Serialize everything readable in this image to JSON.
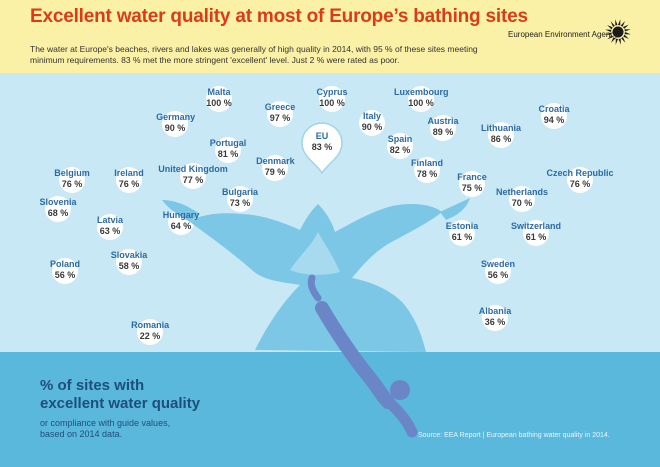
{
  "header": {
    "title": "Excellent water quality at most of Europe’s bathing sites",
    "subtitle": "The water at Europe's beaches, rivers and lakes was generally of high quality in 2014, with 95 % of these sites meeting minimum requirements. 83 % met the more stringent 'excellent' level.  Just 2 % were rated as poor.",
    "agency": "European Environment Agency",
    "logo_icon": "eea-sun-logo-icon"
  },
  "colors": {
    "title": "#dd3b17",
    "header_bg": "#fbf1a6",
    "country_name": "#2d6aa5",
    "value": "#3a3a3a",
    "water": "#5ab8dd",
    "splash": "#7cc7e5",
    "diver": "#6a86c7"
  },
  "legend": {
    "title_line1": "% of sites with",
    "title_line2": "excellent water quality",
    "note_line1": "or compliance with guide values,",
    "note_line2": "based on 2014 data."
  },
  "source": "Source: EEA Report | European bathing water quality in 2014.",
  "chart_data": {
    "type": "table",
    "unit": "%",
    "highlight": {
      "name": "EU",
      "value": 83,
      "label": "83 %"
    },
    "countries": [
      {
        "name": "Malta",
        "value": 100,
        "label": "100 %"
      },
      {
        "name": "Cyprus",
        "value": 100,
        "label": "100 %"
      },
      {
        "name": "Luxembourg",
        "value": 100,
        "label": "100 %"
      },
      {
        "name": "Croatia",
        "value": 94,
        "label": "94 %"
      },
      {
        "name": "Greece",
        "value": 97,
        "label": "97 %"
      },
      {
        "name": "Germany",
        "value": 90,
        "label": "90 %"
      },
      {
        "name": "Italy",
        "value": 90,
        "label": "90 %"
      },
      {
        "name": "Austria",
        "value": 89,
        "label": "89 %"
      },
      {
        "name": "Lithuania",
        "value": 86,
        "label": "86 %"
      },
      {
        "name": "Portugal",
        "value": 81,
        "label": "81 %"
      },
      {
        "name": "Spain",
        "value": 82,
        "label": "82 %"
      },
      {
        "name": "Denmark",
        "value": 79,
        "label": "79 %"
      },
      {
        "name": "Finland",
        "value": 78,
        "label": "78 %"
      },
      {
        "name": "Belgium",
        "value": 76,
        "label": "76 %"
      },
      {
        "name": "Ireland",
        "value": 76,
        "label": "76 %"
      },
      {
        "name": "United Kingdom",
        "value": 77,
        "label": "77 %"
      },
      {
        "name": "France",
        "value": 75,
        "label": "75 %"
      },
      {
        "name": "Czech Republic",
        "value": 76,
        "label": "76 %"
      },
      {
        "name": "Bulgaria",
        "value": 73,
        "label": "73 %"
      },
      {
        "name": "Netherlands",
        "value": 70,
        "label": "70 %"
      },
      {
        "name": "Slovenia",
        "value": 68,
        "label": "68 %"
      },
      {
        "name": "Hungary",
        "value": 64,
        "label": "64 %"
      },
      {
        "name": "Latvia",
        "value": 63,
        "label": "63 %"
      },
      {
        "name": "Estonia",
        "value": 61,
        "label": "61 %"
      },
      {
        "name": "Switzerland",
        "value": 61,
        "label": "61 %"
      },
      {
        "name": "Poland",
        "value": 56,
        "label": "56 %"
      },
      {
        "name": "Slovakia",
        "value": 58,
        "label": "58 %"
      },
      {
        "name": "Sweden",
        "value": 56,
        "label": "56 %"
      },
      {
        "name": "Albania",
        "value": 36,
        "label": "36 %"
      },
      {
        "name": "Romania",
        "value": 22,
        "label": "22 %"
      }
    ]
  }
}
